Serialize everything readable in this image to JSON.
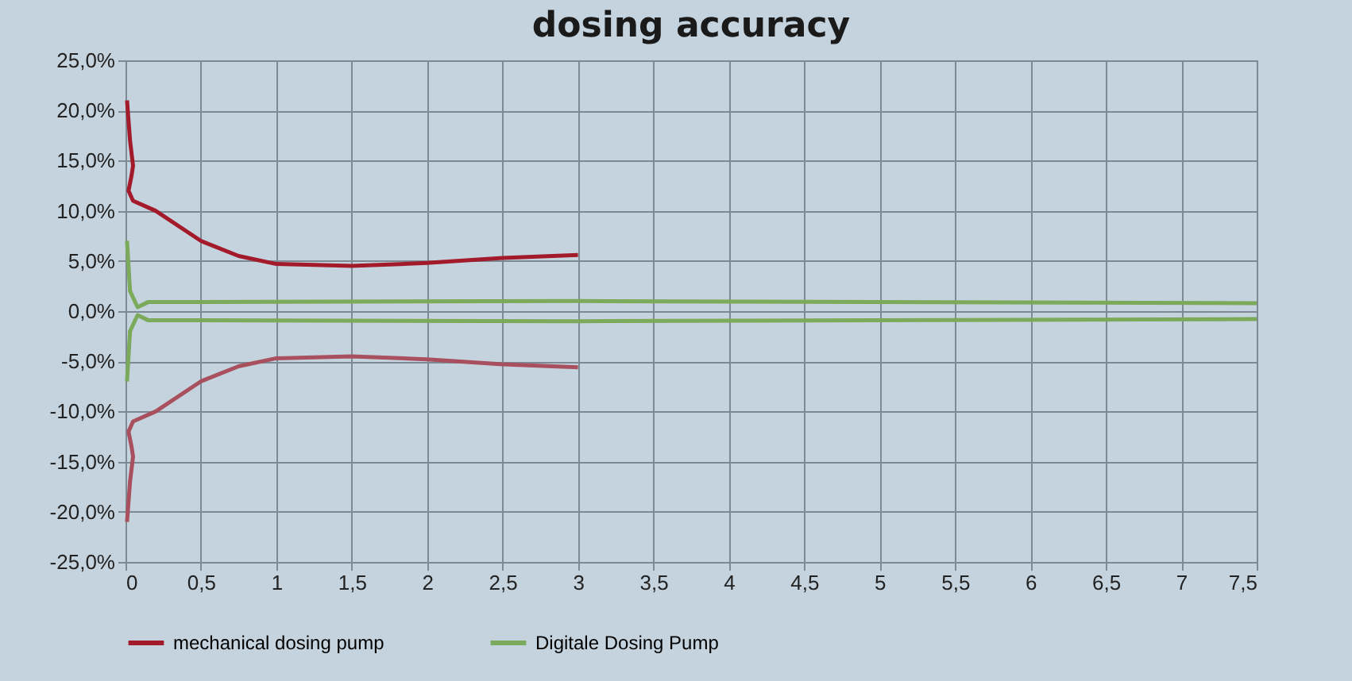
{
  "chart_data": {
    "type": "line",
    "title": "dosing accuracy",
    "xlim": [
      0,
      7.5
    ],
    "xticks": [
      0,
      {
        "value": 0.5,
        "label": "0,5"
      },
      1,
      {
        "value": 1.5,
        "label": "1,5"
      },
      2,
      {
        "value": 2.5,
        "label": "2,5"
      },
      3,
      {
        "value": 3.5,
        "label": "3,5"
      },
      4,
      {
        "value": 4.5,
        "label": "4,5"
      },
      5,
      {
        "value": 5.5,
        "label": "5,5"
      },
      6,
      {
        "value": 6.5,
        "label": "6,5"
      },
      7,
      {
        "value": 7.5,
        "label": "7,5"
      }
    ],
    "ylim": [
      -25,
      25
    ],
    "yticks": [
      {
        "value": -25,
        "label": "-25,0%"
      },
      {
        "value": -20,
        "label": "-20,0%"
      },
      {
        "value": -15,
        "label": "-15,0%"
      },
      {
        "value": -10,
        "label": "-10,0%"
      },
      {
        "value": -5,
        "label": "-5,0%"
      },
      {
        "value": 0,
        "label": "0,0%"
      },
      {
        "value": 5,
        "label": "5,0%"
      },
      {
        "value": 10,
        "label": "10,0%"
      },
      {
        "value": 15,
        "label": "15,0%"
      },
      {
        "value": 20,
        "label": "20,0%"
      },
      {
        "value": 25,
        "label": "25,0%"
      }
    ],
    "grid": true,
    "legend": "bottom",
    "line_style": "solid",
    "marker": "none",
    "series": [
      {
        "name": "mechanical dosing pump",
        "color": "#a31a2a",
        "x": [
          0.01,
          0.03,
          0.05,
          0.04,
          0.02,
          0.05,
          0.2,
          0.5,
          0.75,
          1,
          1.5,
          2,
          2.5,
          3
        ],
        "values": [
          21,
          17,
          14.5,
          13.5,
          12,
          11,
          10,
          7,
          5.5,
          4.7,
          4.5,
          4.8,
          5.3,
          5.6
        ]
      },
      {
        "color": "#a8505e",
        "x": [
          0.01,
          0.03,
          0.05,
          0.04,
          0.02,
          0.05,
          0.2,
          0.5,
          0.75,
          1,
          1.5,
          2,
          2.5,
          3
        ],
        "values": [
          -21,
          -17,
          -14.5,
          -13.5,
          -12,
          -11,
          -10,
          -7,
          -5.5,
          -4.7,
          -4.5,
          -4.8,
          -5.3,
          -5.6
        ]
      },
      {
        "name": "Digitale Dosing Pump",
        "color": "#7aaa5a",
        "x": [
          0.01,
          0.03,
          0.08,
          0.15,
          3,
          7.5
        ],
        "values": [
          7,
          2,
          0.4,
          0.9,
          1,
          0.8
        ]
      },
      {
        "color": "#7aaa5a",
        "x": [
          0.01,
          0.03,
          0.08,
          0.15,
          3,
          7.5
        ],
        "values": [
          -7,
          -2,
          -0.4,
          -0.9,
          -1,
          -0.8
        ]
      }
    ]
  }
}
